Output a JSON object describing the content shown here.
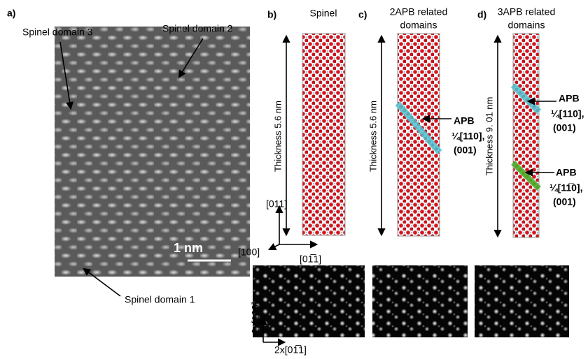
{
  "panel_a": {
    "label": "a)",
    "domain_3": "Spinel domain 3",
    "domain_2": "Spinel domain 2",
    "domain_1": "Spinel domain 1",
    "scale_bar": "1 nm"
  },
  "panel_b": {
    "label": "b)",
    "title": "Spinel",
    "thickness": "Thickness 5.6 nm",
    "axis_up": "[011]",
    "axis_left": "[100]",
    "axis_right": "[01̅1]"
  },
  "panel_c": {
    "label": "c)",
    "title_lines": [
      "2APB related",
      "domains"
    ],
    "thickness": "Thickness 5.6 nm",
    "apb": [
      "APB",
      "¼[110],",
      "(001)"
    ]
  },
  "panel_d": {
    "label": "d)",
    "title_lines": [
      "3APB related",
      "domains"
    ],
    "thickness": "Thickness 9. 01 nm",
    "apb_1": [
      "APB",
      "¼[110],",
      "(001)"
    ],
    "apb_2": [
      "APB",
      "¼[11̅0],",
      "(001)"
    ]
  },
  "simulation": {
    "axis_up": "2x[100]",
    "axis_right": "2x[01̅1]"
  }
}
